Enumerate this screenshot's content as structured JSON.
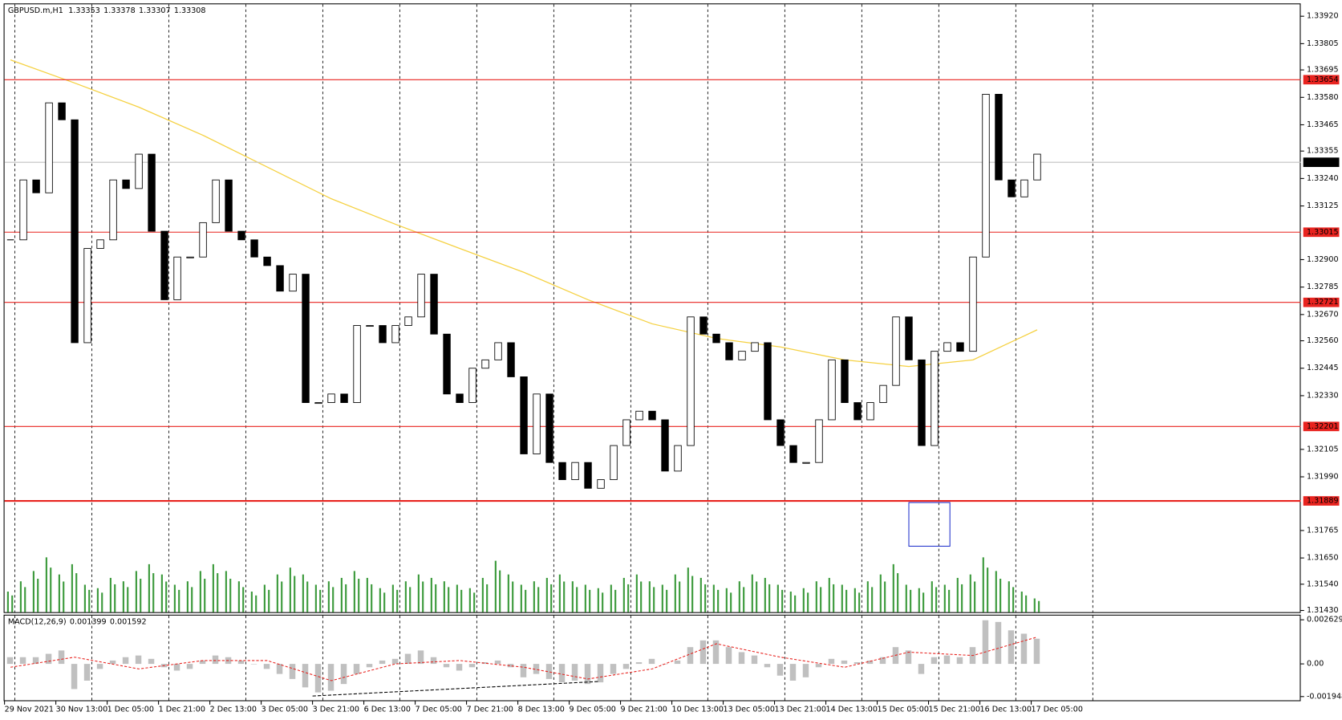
{
  "chart_data": {
    "type": "candlestick",
    "title": "GBPUSD.m,H1",
    "header_values": [
      1.33353,
      1.33378,
      1.33307,
      1.33308
    ],
    "close": [
      1.32983,
      1.33234,
      1.3318,
      1.33557,
      1.33486,
      1.32552,
      1.32947,
      1.32983,
      1.33234,
      1.33198,
      1.33342,
      1.33019,
      1.32732,
      1.32911,
      1.32911,
      1.33055,
      1.33234,
      1.33019,
      1.32983,
      1.32911,
      1.32875,
      1.32768,
      1.32839,
      1.32301,
      1.32301,
      1.32337,
      1.32301,
      1.32624,
      1.32624,
      1.32552,
      1.32624,
      1.3266,
      1.32839,
      1.32588,
      1.32337,
      1.32301,
      1.32445,
      1.3248,
      1.32552,
      1.32409,
      1.32086,
      1.32337,
      1.3205,
      1.31978,
      1.3205,
      1.31942,
      1.31978,
      1.32121,
      1.32229,
      1.32265,
      1.32229,
      1.32014,
      1.32121,
      1.3266,
      1.32588,
      1.32552,
      1.3248,
      1.32516,
      1.32552,
      1.32229,
      1.32121,
      1.3205,
      1.3205,
      1.32229,
      1.3248,
      1.32301,
      1.32229,
      1.32301,
      1.32373,
      1.3266,
      1.3248,
      1.32121,
      1.32516,
      1.32552,
      1.32516,
      1.32911,
      1.33593,
      1.33234,
      1.33163,
      1.33234,
      1.33342
    ],
    "volume": [
      30,
      45,
      60,
      80,
      55,
      70,
      40,
      35,
      50,
      45,
      60,
      70,
      55,
      40,
      45,
      60,
      70,
      60,
      45,
      30,
      40,
      55,
      65,
      55,
      40,
      45,
      50,
      60,
      50,
      35,
      40,
      45,
      55,
      50,
      45,
      40,
      35,
      50,
      75,
      55,
      40,
      45,
      50,
      55,
      45,
      40,
      35,
      40,
      50,
      55,
      45,
      40,
      55,
      65,
      50,
      40,
      35,
      45,
      55,
      50,
      40,
      30,
      35,
      45,
      50,
      40,
      35,
      45,
      55,
      70,
      40,
      35,
      45,
      40,
      50,
      55,
      80,
      60,
      45,
      30,
      20
    ],
    "ma": [
      1.33737,
      1.3364,
      1.33539,
      1.33421,
      1.33288,
      1.33155,
      1.33048,
      1.32947,
      1.32847,
      1.32732,
      1.32631,
      1.3257,
      1.32534,
      1.3248,
      1.32452,
      1.3248,
      1.32606
    ],
    "ylim": [
      1.31423,
      1.3397
    ],
    "yticks": [
      {
        "value": 1.3392,
        "label": "1.33920"
      },
      1.33805,
      1.33695,
      {
        "value": 1.3358,
        "label": "1.33580"
      },
      1.33465,
      1.33355,
      {
        "value": 1.3324,
        "label": "1.33240"
      },
      1.33125,
      {
        "value": 1.329,
        "label": "1.32900"
      },
      1.32785,
      {
        "value": 1.3267,
        "label": "1.32670"
      },
      {
        "value": 1.3256,
        "label": "1.32560"
      },
      1.32445,
      {
        "value": 1.3233,
        "label": "1.32330"
      },
      1.32105,
      {
        "value": 1.3199,
        "label": "1.31990"
      },
      1.31765,
      {
        "value": 1.3165,
        "label": "1.31650"
      },
      {
        "value": 1.3154,
        "label": "1.31540"
      },
      {
        "value": 1.3143,
        "label": "1.31430"
      }
    ],
    "levels": [
      1.33654,
      1.33015,
      1.32721,
      1.32201,
      1.31889
    ],
    "current_price": 1.33308,
    "xticks": [
      "29 Nov 2021",
      "30 Nov 13:00",
      "1 Dec 05:00",
      "1 Dec 21:00",
      "2 Dec 13:00",
      "3 Dec 05:00",
      "3 Dec 21:00",
      "6 Dec 13:00",
      "7 Dec 05:00",
      "7 Dec 21:00",
      "8 Dec 13:00",
      "9 Dec 05:00",
      "9 Dec 21:00",
      "10 Dec 13:00",
      "13 Dec 05:00",
      "13 Dec 21:00",
      "14 Dec 13:00",
      "15 Dec 05:00",
      "15 Dec 21:00",
      "16 Dec 13:00",
      "17 Dec 05:00"
    ],
    "up_color": "#ffffff",
    "down_color": "#000000",
    "volume_color": "#3c9a3c",
    "ma_color": "#f5d142",
    "level_color": "#e8231f",
    "macd": {
      "title": "MACD(12,26,9)",
      "header_values": [
        0.001399,
        0.001592
      ],
      "histogram": [
        0.0004,
        0.0004,
        0.0004,
        0.0006,
        0.0008,
        -0.0015,
        -0.001,
        -0.0003,
        0.0002,
        0.0004,
        0.0005,
        0.0003,
        -0.0002,
        -0.0004,
        -0.0003,
        0.0002,
        0.0005,
        0.0004,
        0.0002,
        0,
        -0.0003,
        -0.0006,
        -0.0009,
        -0.0014,
        -0.0017,
        -0.0016,
        -0.0012,
        -0.0006,
        -0.0002,
        0.0002,
        0.0003,
        0.0006,
        0.0008,
        0.0004,
        -0.0002,
        -0.0004,
        -0.0002,
        0.0001,
        0.0002,
        -0.0002,
        -0.0008,
        -0.0006,
        -0.0009,
        -0.0011,
        -0.001,
        -0.0012,
        -0.0011,
        -0.0006,
        -0.0003,
        0.0001,
        0.0003,
        0,
        0.0002,
        0.001,
        0.0014,
        0.0014,
        0.001,
        0.0007,
        0.0005,
        -0.0002,
        -0.0007,
        -0.001,
        -0.0008,
        -0.0002,
        0.0003,
        0.0002,
        0.0001,
        0.0002,
        0.0004,
        0.001,
        0.0008,
        -0.0006,
        0.0004,
        0.0005,
        0.0004,
        0.001,
        0.0026,
        0.0025,
        0.002,
        0.0018,
        0.0015
      ],
      "signal": [
        -0.0002,
        0.0004,
        -0.0003,
        0.0002,
        0.0002,
        -0.001,
        0,
        0.0002,
        -0.0002,
        -0.0009,
        -0.0003,
        0.0012,
        0.0004,
        -0.0002,
        0.0007,
        0.0005,
        0.0016
      ],
      "ylim": [
        -0.00212,
        0.00283
      ],
      "yticks": [
        0.002629,
        {
          "value": 0,
          "label": "0.00"
        },
        -0.001948
      ],
      "histogram_color": "#c0c0c0",
      "signal_color": "#e8231f"
    }
  }
}
